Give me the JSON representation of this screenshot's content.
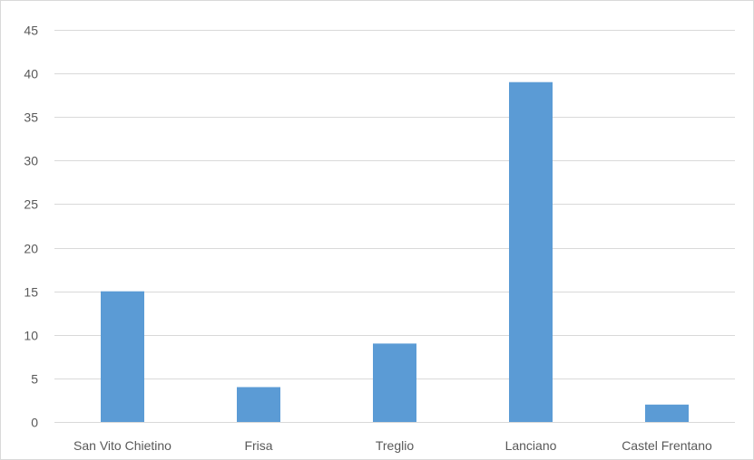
{
  "chart_data": {
    "type": "bar",
    "categories": [
      "San Vito Chietino",
      "Frisa",
      "Treglio",
      "Lanciano",
      "Castel Frentano"
    ],
    "series": [
      {
        "values": [
          15,
          4,
          9,
          39,
          2
        ]
      }
    ],
    "title": "",
    "xlabel": "",
    "ylabel": "",
    "ylim": [
      0,
      45
    ],
    "yticks": [
      0,
      5,
      10,
      15,
      20,
      25,
      30,
      35,
      40,
      45
    ],
    "grid": true,
    "legend": "none",
    "bar_color": "#5b9bd5"
  }
}
